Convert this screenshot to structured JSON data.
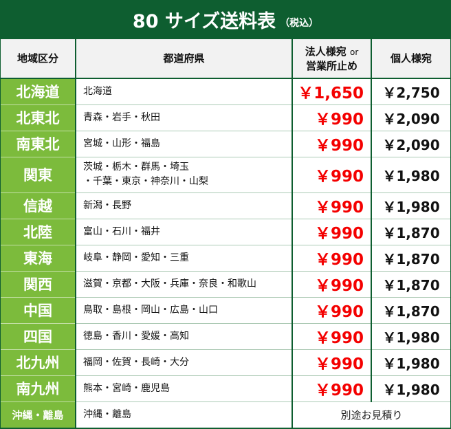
{
  "title": {
    "main": "80 サイズ送料表",
    "sub": "（税込）"
  },
  "headers": {
    "region": "地域区分",
    "prefectures": "都道府県",
    "corporate_line1": "法人様宛",
    "corporate_or": "or",
    "corporate_line2": "営業所止め",
    "personal": "個人様宛"
  },
  "colors": {
    "title_bg": "#0e5e30",
    "region_bg": "#7cbb3c",
    "corporate_price": "#f40000"
  },
  "rows": [
    {
      "region": "北海道",
      "prefectures": "北海道",
      "corporate": "￥1,650",
      "personal": "￥2,750"
    },
    {
      "region": "北東北",
      "prefectures": "青森・岩手・秋田",
      "corporate": "￥990",
      "personal": "￥2,090"
    },
    {
      "region": "南東北",
      "prefectures": "宮城・山形・福島",
      "corporate": "￥990",
      "personal": "￥2,090"
    },
    {
      "region": "関東",
      "prefectures": "茨城・栃木・群馬・埼玉",
      "prefectures2": "・千葉・東京・神奈川・山梨",
      "corporate": "￥990",
      "personal": "￥1,980"
    },
    {
      "region": "信越",
      "prefectures": "新潟・長野",
      "corporate": "￥990",
      "personal": "￥1,980"
    },
    {
      "region": "北陸",
      "prefectures": "富山・石川・福井",
      "corporate": "￥990",
      "personal": "￥1,870"
    },
    {
      "region": "東海",
      "prefectures": "岐阜・静岡・愛知・三重",
      "corporate": "￥990",
      "personal": "￥1,870"
    },
    {
      "region": "関西",
      "prefectures": "滋賀・京都・大阪・兵庫・奈良・和歌山",
      "corporate": "￥990",
      "personal": "￥1,870"
    },
    {
      "region": "中国",
      "prefectures": "鳥取・島根・岡山・広島・山口",
      "corporate": "￥990",
      "personal": "￥1,870"
    },
    {
      "region": "四国",
      "prefectures": "徳島・香川・愛媛・高知",
      "corporate": "￥990",
      "personal": "￥1,980"
    },
    {
      "region": "北九州",
      "prefectures": "福岡・佐賀・長崎・大分",
      "corporate": "￥990",
      "personal": "￥1,980"
    },
    {
      "region": "南九州",
      "prefectures": "熊本・宮崎・鹿児島",
      "corporate": "￥990",
      "personal": "￥1,980"
    }
  ],
  "okinawa": {
    "region": "沖縄・離島",
    "prefectures": "沖縄・離島",
    "note": "別途お見積り"
  }
}
